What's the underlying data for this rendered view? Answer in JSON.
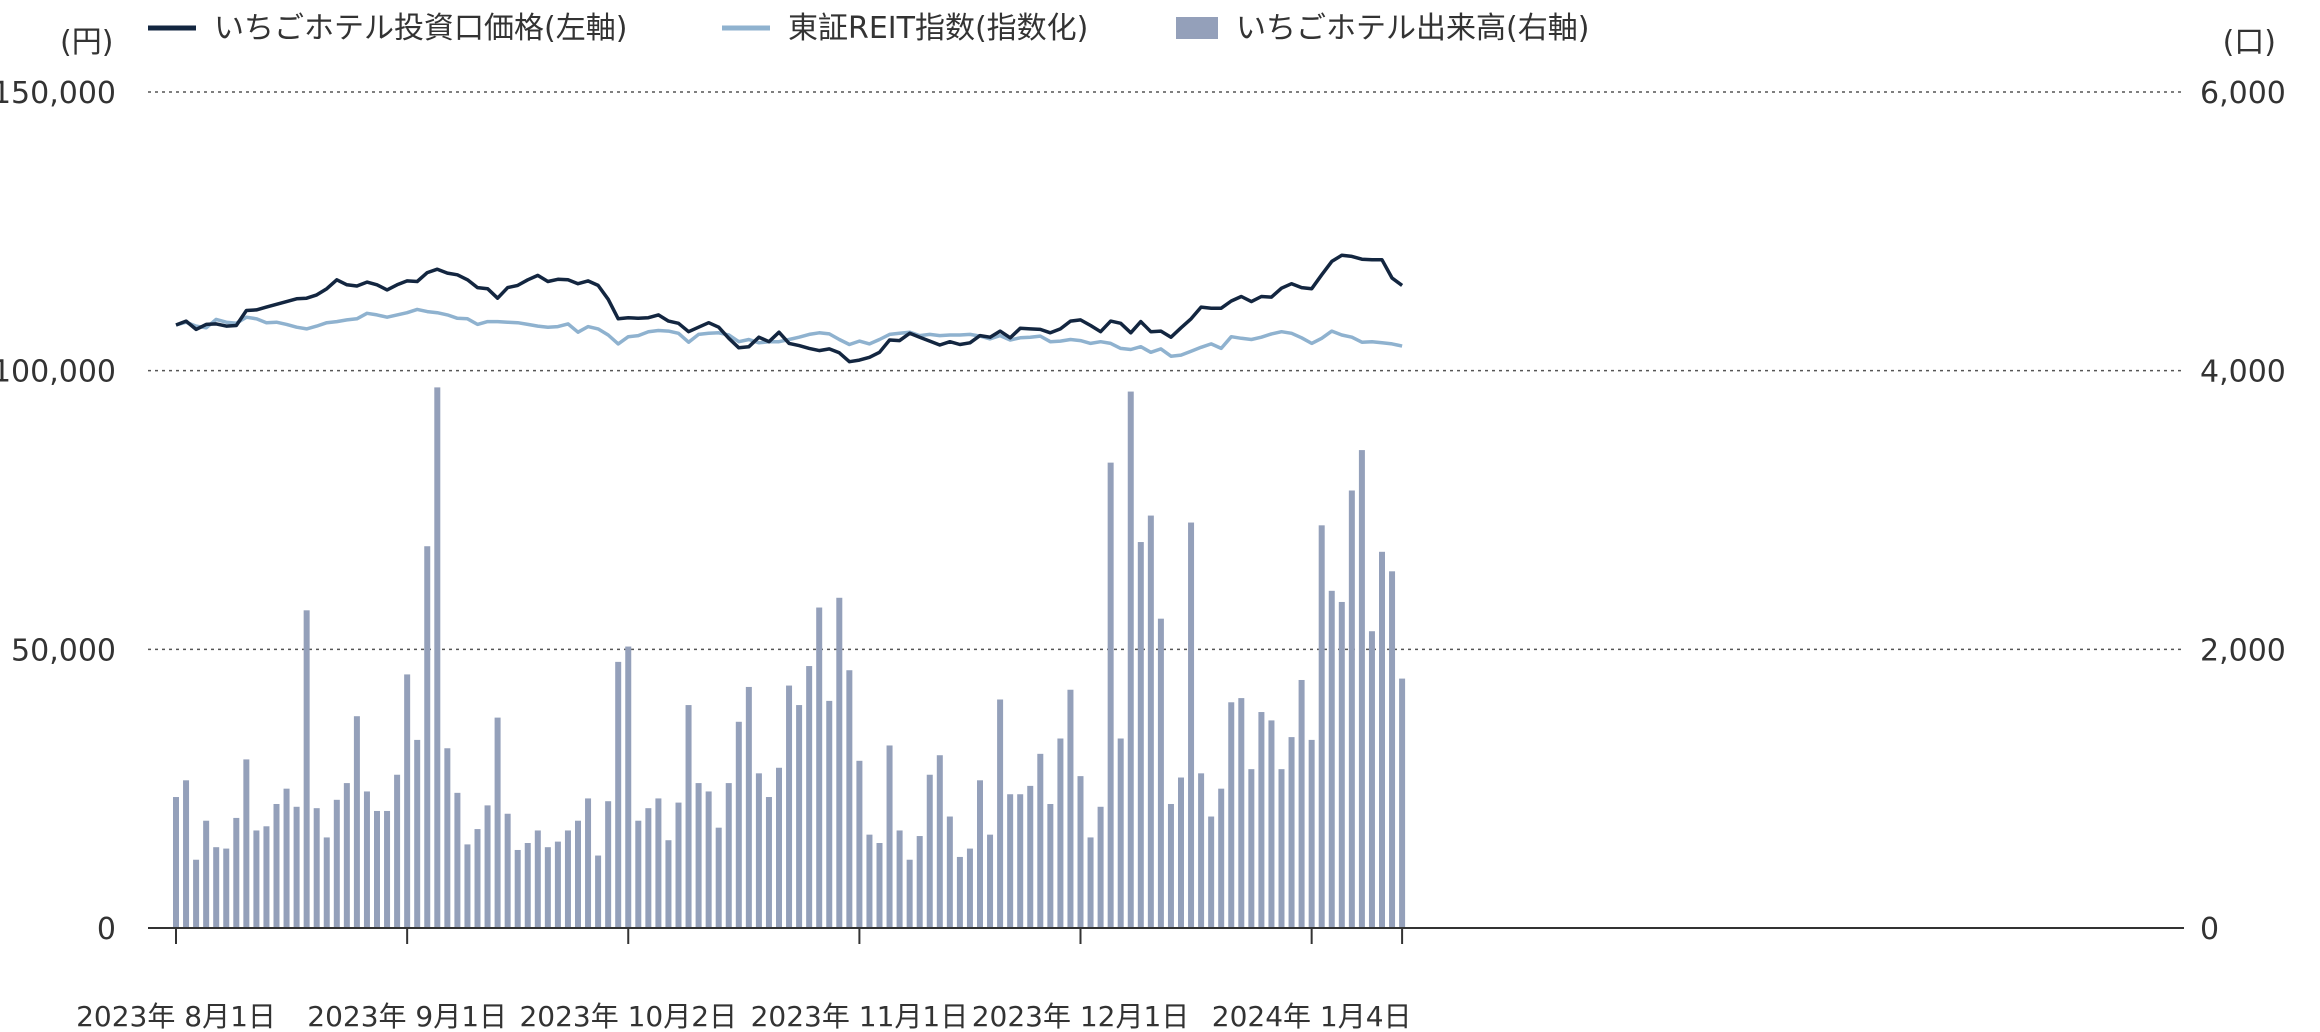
{
  "chart_data": {
    "type": "bar+line",
    "title": "",
    "legend": {
      "placement": "top-left",
      "items": [
        {
          "label": "いちごホテル投資口価格(左軸)",
          "kind": "line",
          "color": "#132640"
        },
        {
          "label": "東証REIT指数(指数化)",
          "kind": "line",
          "color": "#8fb2cf"
        },
        {
          "label": "いちごホテル出来高(右軸)",
          "kind": "bar",
          "color": "#94a0ba"
        }
      ]
    },
    "left_axis": {
      "unit": "(円)",
      "min": 0,
      "max": 150000,
      "ticks": [
        "0",
        "50,000",
        "100,000",
        "150,000"
      ]
    },
    "right_axis": {
      "unit": "(口)",
      "min": 0,
      "max": 6000,
      "ticks": [
        "0",
        "2,000",
        "4,000",
        "6,000"
      ]
    },
    "x_ticks": [
      {
        "label": "2023年 8月1日",
        "index": 0
      },
      {
        "label": "2023年 9月1日",
        "index": 23
      },
      {
        "label": "2023年 10月2日",
        "index": 45
      },
      {
        "label": "2023年 11月1日",
        "index": 68
      },
      {
        "label": "2023年 12月1日",
        "index": 90
      },
      {
        "label": "2024年 1月4日",
        "index": 113
      }
    ],
    "grid": "dotted horizontal",
    "volume": [
      940,
      1060,
      490,
      770,
      580,
      570,
      790,
      1210,
      700,
      730,
      890,
      1000,
      870,
      2280,
      860,
      650,
      920,
      1040,
      1520,
      980,
      840,
      840,
      1100,
      1820,
      1350,
      2740,
      3880,
      1290,
      970,
      600,
      710,
      880,
      1510,
      820,
      560,
      610,
      700,
      580,
      620,
      700,
      770,
      930,
      520,
      910,
      1910,
      2020,
      770,
      860,
      930,
      630,
      900,
      1600,
      1040,
      980,
      720,
      1040,
      1480,
      1730,
      1110,
      940,
      1150,
      1740,
      1600,
      1880,
      2300,
      1630,
      2370,
      1850,
      1200,
      670,
      610,
      1310,
      700,
      490,
      660,
      1100,
      1240,
      800,
      510,
      570,
      1060,
      670,
      1640,
      960,
      960,
      1020,
      1250,
      890,
      1360,
      1710,
      1090,
      650,
      870,
      3340,
      1360,
      3850,
      2770,
      2960,
      2220,
      890,
      1080,
      2910,
      1110,
      800,
      1000,
      1620,
      1650,
      1140,
      1550,
      1490,
      1140,
      1370,
      1780,
      1350,
      2890,
      2420,
      2340,
      3140,
      3430,
      2130,
      2700,
      2560,
      1790
    ],
    "price": [
      108200,
      108900,
      107400,
      108300,
      108400,
      108000,
      108100,
      110800,
      110900,
      111400,
      111900,
      112400,
      112900,
      113000,
      113600,
      114700,
      116300,
      115400,
      115200,
      115900,
      115400,
      114500,
      115400,
      116100,
      116000,
      117600,
      118200,
      117500,
      117200,
      116300,
      114900,
      114700,
      113000,
      114900,
      115300,
      116300,
      117100,
      116000,
      116400,
      116300,
      115600,
      116100,
      115300,
      112800,
      109300,
      109500,
      109400,
      109500,
      110000,
      108900,
      108500,
      107000,
      107800,
      108600,
      107800,
      105800,
      104100,
      104300,
      106000,
      105200,
      106900,
      104900,
      104500,
      104000,
      103600,
      103900,
      103200,
      101600,
      101900,
      102400,
      103300,
      105500,
      105400,
      106700,
      106000,
      105300,
      104600,
      105200,
      104700,
      105000,
      106300,
      106000,
      107100,
      105900,
      107600,
      107500,
      107400,
      106800,
      107500,
      108900,
      109100,
      108100,
      107000,
      108900,
      108500,
      106800,
      108800,
      107000,
      107100,
      106000,
      107700,
      109300,
      111400,
      111200,
      111200,
      112500,
      113300,
      112400,
      113300,
      113200,
      114800,
      115600,
      114900,
      114700,
      117200,
      119600,
      120700,
      120500,
      120000,
      119900,
      119900,
      116600,
      115300
    ],
    "reit": [
      108200,
      108700,
      108000,
      107700,
      109200,
      108700,
      108500,
      109600,
      109300,
      108600,
      108700,
      108300,
      107800,
      107500,
      108000,
      108600,
      108800,
      109100,
      109300,
      110300,
      110000,
      109600,
      110000,
      110400,
      111000,
      110600,
      110400,
      110000,
      109400,
      109300,
      108300,
      108800,
      108800,
      108700,
      108600,
      108300,
      108000,
      107800,
      107900,
      108400,
      106900,
      107900,
      107500,
      106400,
      104800,
      106100,
      106300,
      107000,
      107200,
      107100,
      106700,
      105100,
      106500,
      106700,
      106800,
      106400,
      105200,
      105600,
      105000,
      105200,
      105200,
      105600,
      106000,
      106500,
      106800,
      106600,
      105600,
      104700,
      105300,
      104800,
      105600,
      106500,
      106700,
      106900,
      106300,
      106500,
      106300,
      106400,
      106400,
      106500,
      106200,
      105700,
      106300,
      105500,
      105900,
      106000,
      106200,
      105200,
      105300,
      105600,
      105400,
      104900,
      105200,
      104900,
      104000,
      103800,
      104300,
      103300,
      103900,
      102600,
      102800,
      103500,
      104200,
      104800,
      104000,
      106100,
      105800,
      105600,
      106000,
      106600,
      107000,
      106700,
      105900,
      104900,
      105800,
      107100,
      106400,
      106000,
      105100,
      105200,
      105000,
      104800,
      104400
    ]
  }
}
